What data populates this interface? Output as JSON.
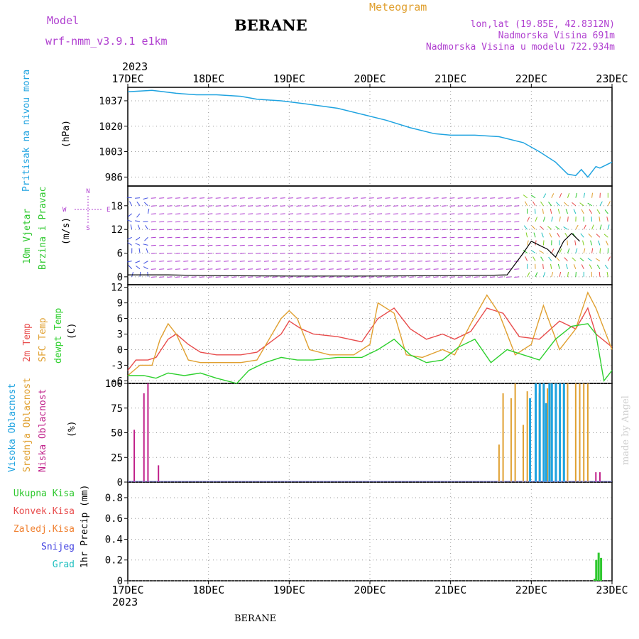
{
  "header": {
    "model_label": "Model",
    "model_name": "wrf-nmm_v3.9.1 e1km",
    "station": "BERANE",
    "meteogram_label": "Meteogram",
    "lonlat": "lon,lat (19.85E, 42.8312N)",
    "elevation": "Nadmorska Visina 691m",
    "model_elevation": "Nadmorska Visina u modelu 722.934m",
    "year_top": "2023",
    "year_bottom": "2023",
    "footer": "BERANE",
    "credit": "made by Angel"
  },
  "colors": {
    "pressure": "#1fa3e0",
    "wind_label": "#2ec82e",
    "temp2m": "#e84c4c",
    "sfc": "#e0a030",
    "dewpt": "#2ed02e",
    "purple": "#b040d0",
    "high_cloud": "#1fa3e0",
    "mid_cloud": "#e0a030",
    "low_cloud": "#c0208a",
    "total_precip": "#2ec82e"
  },
  "chart_data": [
    {
      "id": "pressure",
      "type": "line",
      "ylabel_main": "Pritisak na nivou mora",
      "ylabel_unit": "(hPa)",
      "yticks": [
        "1037",
        "1020",
        "1003",
        "986"
      ],
      "ylim": [
        980,
        1046
      ],
      "x_days": [
        "17DEC",
        "18DEC",
        "19DEC",
        "20DEC",
        "21DEC",
        "22DEC",
        "23DEC"
      ],
      "series": [
        {
          "x": [
            0,
            0.3,
            0.6,
            0.85,
            1.1,
            1.4,
            1.6,
            1.9,
            2.2,
            2.6,
            2.9,
            3.2,
            3.5,
            3.8,
            4.0,
            4.3,
            4.6,
            4.9,
            5.1,
            5.3,
            5.45,
            5.55,
            5.62,
            5.7,
            5.8,
            5.85,
            6.0
          ],
          "values": [
            1043,
            1044,
            1042,
            1041,
            1041,
            1040,
            1038,
            1037,
            1035,
            1032,
            1028,
            1024,
            1019,
            1015,
            1014,
            1014,
            1013,
            1009,
            1003,
            996,
            988,
            987,
            991,
            986,
            993,
            992,
            996
          ]
        }
      ]
    },
    {
      "id": "wind",
      "type": "line",
      "ylabel_1": "10m Vjetar",
      "ylabel_2": "Brzina i Pravac",
      "ylabel_unit": "(m/s)",
      "yticks": [
        "18",
        "12",
        "6",
        "0"
      ],
      "ylim": [
        -2,
        23
      ],
      "compass": {
        "n": "N",
        "s": "S",
        "e": "E",
        "w": "W"
      },
      "series": [
        {
          "name": "speed",
          "x": [
            0,
            0.5,
            1,
            2,
            3,
            4,
            4.5,
            4.7,
            4.9,
            5.0,
            5.1,
            5.2,
            5.3,
            5.4,
            5.5,
            5.6
          ],
          "values": [
            0.5,
            0.5,
            0.3,
            0.2,
            0.2,
            0.3,
            0.4,
            0.5,
            6,
            9,
            8,
            7,
            5,
            9,
            11,
            9
          ]
        }
      ]
    },
    {
      "id": "temperature",
      "type": "line",
      "ylabel_1": "2m Temp",
      "ylabel_2": "SFC Temp",
      "ylabel_3": "dewpt Temp",
      "ylabel_unit": "(C)",
      "yticks": [
        "12",
        "9",
        "6",
        "3",
        "0",
        "-3",
        "-6"
      ],
      "ylim": [
        -6.5,
        12.5
      ],
      "series": [
        {
          "name": "2m",
          "x": [
            0,
            0.1,
            0.25,
            0.35,
            0.5,
            0.6,
            0.75,
            0.9,
            1.1,
            1.4,
            1.6,
            1.9,
            2.0,
            2.15,
            2.3,
            2.6,
            2.9,
            3.1,
            3.3,
            3.5,
            3.7,
            3.9,
            4.05,
            4.25,
            4.45,
            4.65,
            4.85,
            5.1,
            5.35,
            5.55,
            5.7,
            5.8,
            6.0
          ],
          "values": [
            -4,
            -2,
            -2,
            -1.5,
            2,
            3,
            1,
            -0.5,
            -1,
            -1,
            -0.5,
            3,
            5.5,
            4,
            3,
            2.5,
            1.5,
            6,
            8,
            4,
            2,
            3,
            2,
            3.5,
            8,
            7,
            2.5,
            2,
            5.5,
            4,
            8,
            3,
            0.5
          ]
        },
        {
          "name": "SFC",
          "x": [
            0,
            0.15,
            0.3,
            0.4,
            0.5,
            0.6,
            0.75,
            0.9,
            1.1,
            1.4,
            1.6,
            1.9,
            2.0,
            2.1,
            2.25,
            2.5,
            2.8,
            3.0,
            3.1,
            3.3,
            3.45,
            3.65,
            3.9,
            4.05,
            4.25,
            4.45,
            4.6,
            4.8,
            5.0,
            5.15,
            5.35,
            5.55,
            5.7,
            5.8,
            6.0
          ],
          "values": [
            -5,
            -3,
            -3,
            2,
            5,
            3,
            -2,
            -2.5,
            -2.5,
            -2.5,
            -2,
            6,
            7.5,
            6,
            0,
            -1,
            -1,
            1,
            9,
            7,
            -1,
            -1.5,
            0,
            -1,
            5,
            10.5,
            7,
            -1,
            1,
            8.5,
            0,
            4,
            11,
            8,
            0
          ]
        },
        {
          "name": "dewpt",
          "x": [
            0,
            0.2,
            0.35,
            0.5,
            0.7,
            0.9,
            1.1,
            1.35,
            1.5,
            1.7,
            1.9,
            2.1,
            2.3,
            2.6,
            2.9,
            3.1,
            3.3,
            3.5,
            3.7,
            3.9,
            4.1,
            4.3,
            4.5,
            4.7,
            4.9,
            5.1,
            5.3,
            5.5,
            5.7,
            5.8,
            5.9,
            6.0
          ],
          "values": [
            -5,
            -5,
            -5.5,
            -4.5,
            -5,
            -4.5,
            -5.5,
            -6.5,
            -4,
            -2.5,
            -1.5,
            -2,
            -2,
            -1.5,
            -1.5,
            0,
            2,
            -1,
            -2.5,
            -2,
            0.5,
            2,
            -2.5,
            0,
            -1,
            -2,
            2,
            4.5,
            5,
            3,
            -6,
            -4
          ]
        }
      ]
    },
    {
      "id": "clouds",
      "type": "bar",
      "ylabel_1": "Visoka Oblacnost",
      "ylabel_2": "Srednja Oblacnost",
      "ylabel_3": "Niska Oblacnost",
      "ylabel_unit": "(%)",
      "yticks": [
        "100",
        "75",
        "50",
        "25",
        "0"
      ],
      "ylim": [
        0,
        100
      ],
      "series": [
        {
          "name": "low",
          "x": [
            0.08,
            0.2,
            0.25,
            0.38,
            5.8,
            5.85
          ],
          "values": [
            53,
            90,
            100,
            17,
            10,
            10
          ]
        },
        {
          "name": "mid",
          "x": [
            4.6,
            4.65,
            4.75,
            4.8,
            4.9,
            4.95,
            5.1,
            5.15,
            5.2,
            5.25,
            5.3,
            5.35,
            5.4,
            5.45,
            5.55,
            5.6,
            5.65,
            5.7
          ],
          "values": [
            38,
            90,
            85,
            100,
            58,
            92,
            90,
            100,
            95,
            100,
            100,
            100,
            95,
            100,
            100,
            100,
            100,
            100
          ]
        },
        {
          "name": "high",
          "x": [
            4.98,
            5.05,
            5.1,
            5.15,
            5.18,
            5.22,
            5.25,
            5.3,
            5.35,
            5.4
          ],
          "values": [
            85,
            100,
            100,
            100,
            80,
            100,
            100,
            100,
            100,
            100
          ]
        }
      ]
    },
    {
      "id": "precip",
      "type": "bar",
      "ylabel_1": "1hr Precip (mm)",
      "yticks": [
        "0.8",
        "0.6",
        "0.4",
        "0.2",
        "0"
      ],
      "ylim": [
        0,
        0.95
      ],
      "legend": [
        "Ukupna Kisa",
        "Konvek.Kisa",
        "Zaledj.Kisa",
        "Snijeg",
        "Grad"
      ],
      "series": [
        {
          "name": "Ukupna Kisa",
          "x": [
            5.78,
            5.8,
            5.83,
            5.86
          ],
          "values": [
            0.02,
            0.2,
            0.27,
            0.22
          ]
        }
      ]
    }
  ]
}
